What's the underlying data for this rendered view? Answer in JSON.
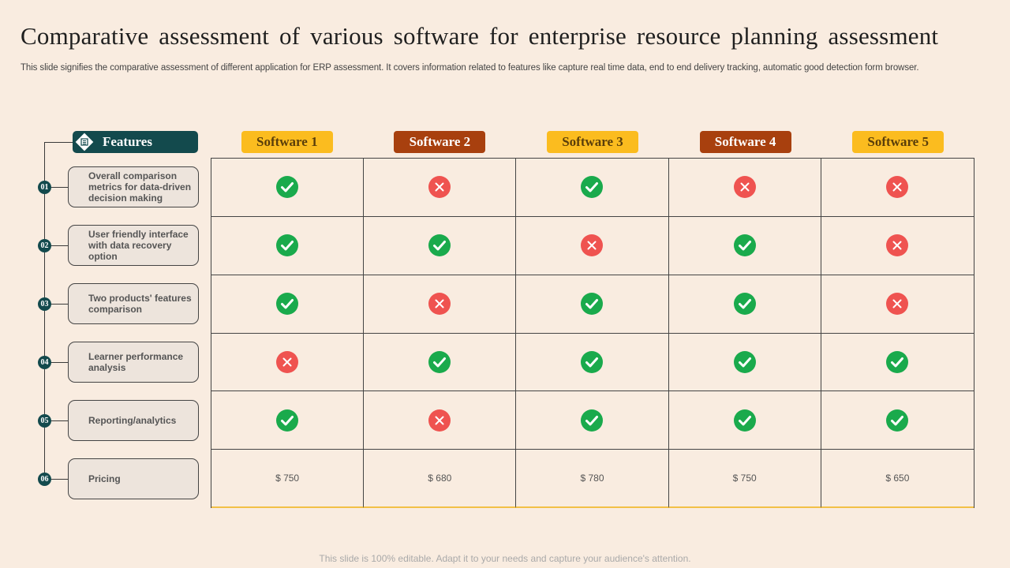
{
  "title": "Comparative assessment of various software for enterprise resource planning assessment",
  "subtitle": "This slide signifies the comparative assessment of different application for  ERP assessment. It covers information related to features like capture real time data, end to  end delivery tracking, automatic good detection form browser.",
  "footer": "This slide is 100% editable. Adapt it to your needs and capture your audience's attention.",
  "features_header": "Features",
  "features_header_icon": "checklist-icon",
  "colors": {
    "teal": "#134a4d",
    "yellow": "#fbbc1f",
    "brown": "#a8400e",
    "check": "#1aaa4c",
    "cross": "#ef5350"
  },
  "features": [
    {
      "num": "01",
      "label": "Overall comparison metrics for data-driven decision making"
    },
    {
      "num": "02",
      "label": "User friendly interface with data recovery option"
    },
    {
      "num": "03",
      "label": "Two products' features comparison"
    },
    {
      "num": "04",
      "label": "Learner performance analysis"
    },
    {
      "num": "05",
      "label": "Reporting/analytics"
    },
    {
      "num": "06",
      "label": "Pricing"
    }
  ],
  "software": [
    {
      "name": "Software 1",
      "style": "yellow"
    },
    {
      "name": "Software 2",
      "style": "brown"
    },
    {
      "name": "Software 3",
      "style": "yellow"
    },
    {
      "name": "Software 4",
      "style": "brown"
    },
    {
      "name": "Software 5",
      "style": "yellow"
    }
  ],
  "matrix": [
    [
      "check",
      "cross",
      "check",
      "cross",
      "cross"
    ],
    [
      "check",
      "check",
      "cross",
      "check",
      "cross"
    ],
    [
      "check",
      "cross",
      "check",
      "check",
      "cross"
    ],
    [
      "cross",
      "check",
      "check",
      "check",
      "check"
    ],
    [
      "check",
      "cross",
      "check",
      "check",
      "check"
    ]
  ],
  "prices": [
    "$ 750",
    "$ 680",
    "$ 780",
    "$ 750",
    "$ 650"
  ]
}
